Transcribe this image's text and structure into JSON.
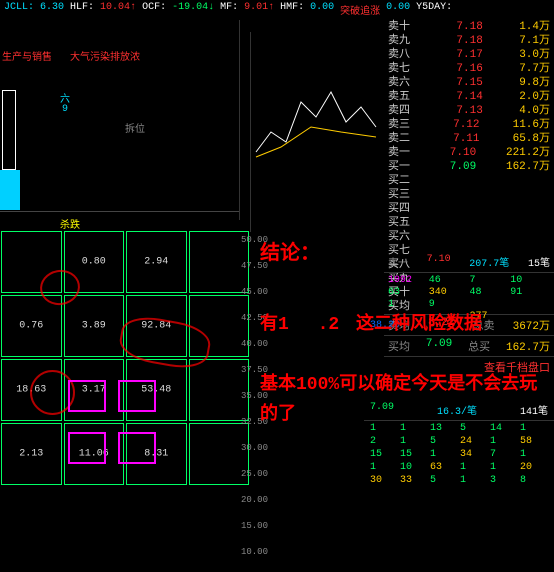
{
  "topbar": {
    "jcll_label": "JCLL:",
    "jcll_val": "6.30",
    "hlf_label": "HLF:",
    "hlf_val": "10.04↑",
    "ocf_label": "OCF:",
    "ocf_val": "-19.04↓",
    "mf_label": "MF:",
    "mf_val": "9.01↑",
    "hmf_label": "HMF:",
    "hmf_val": "0.00",
    "breakout": "突破追涨",
    "breakout_val": "0.00",
    "y5day": "Y5DAY:",
    "strategy": "策略"
  },
  "left_chart": {
    "title1": "生产与销售",
    "title2": "大气污染排放浓",
    "six": "六",
    "nine": "9",
    "dismantle": "拆位"
  },
  "wave": "杀跌",
  "grid": {
    "r1": [
      "",
      "0.80",
      "2.94",
      ""
    ],
    "r2": [
      "0.76",
      "3.89",
      "92.84",
      ""
    ],
    "r3": [
      "18.63",
      "3.17",
      "53.48",
      ""
    ],
    "r4": [
      "2.13",
      "11.06",
      "8.31",
      ""
    ]
  },
  "orderbook": {
    "sells": [
      {
        "l": "卖十",
        "p": "7.18",
        "v": "1.4万"
      },
      {
        "l": "卖九",
        "p": "7.18",
        "v": "7.1万"
      },
      {
        "l": "卖八",
        "p": "7.17",
        "v": "3.0万"
      },
      {
        "l": "卖七",
        "p": "7.16",
        "v": "7.7万"
      },
      {
        "l": "卖六",
        "p": "7.15",
        "v": "9.8万"
      },
      {
        "l": "卖五",
        "p": "7.14",
        "v": "2.0万"
      },
      {
        "l": "卖四",
        "p": "7.13",
        "v": "4.0万"
      },
      {
        "l": "卖三",
        "p": "7.12",
        "v": "11.6万"
      },
      {
        "l": "卖二",
        "p": "7.11",
        "v": "65.8万"
      },
      {
        "l": "卖一",
        "p": "7.10",
        "v": "221.2万"
      }
    ],
    "buy1": {
      "l": "买一",
      "p": "7.09",
      "v": "162.7万"
    },
    "buy_labels": [
      "买二",
      "买三",
      "买四",
      "买五",
      "买六",
      "买七",
      "买八",
      "买九",
      "买十",
      "买均"
    ],
    "sell_avg": {
      "l": "卖均",
      "p": "8.22",
      "t": "总卖",
      "v": "3672万"
    },
    "buy_avg": {
      "l": "买均",
      "p": "7.09",
      "t": "总买",
      "v": "162.7万"
    },
    "panel_link": "查看千档盘口"
  },
  "ticks": {
    "header": {
      "l": "卖一",
      "p": "7.10",
      "c": "207.7笔",
      "n": "15笔"
    },
    "rows": [
      [
        "1992",
        "46",
        "7",
        "10",
        "63"
      ],
      [
        "340",
        "48",
        "91",
        "1",
        "9"
      ],
      [
        "",
        "",
        "",
        "",
        "277"
      ]
    ]
  },
  "bottom": {
    "header": {
      "p": "7.09",
      "c": "16.3/笔",
      "n": "141笔"
    },
    "rows": [
      [
        "1",
        "1",
        "13",
        "5",
        "14"
      ],
      [
        "1",
        "2",
        "1",
        "5",
        "24"
      ],
      [
        "1",
        "58",
        "15",
        "15",
        "1"
      ],
      [
        "34",
        "7",
        "1",
        "1",
        "10"
      ],
      [
        "63",
        "1",
        "1",
        "20",
        "30"
      ],
      [
        "33",
        "5",
        "1",
        "3",
        "8"
      ]
    ]
  },
  "yaxis": [
    "50.00",
    "47.50",
    "45.00",
    "42.50",
    "40.00",
    "37.50",
    "35.00",
    "32.50",
    "30.00",
    "25.00",
    "20.00",
    "15.00",
    "10.00"
  ],
  "yaxis_hl": "38.20",
  "conclusion": {
    "title": "结论：",
    "line2a": "有1",
    "line2b": ".2",
    "line2c": "这二种风险数据",
    "line3": "基本100%可以确定今天是不会去玩的了"
  }
}
